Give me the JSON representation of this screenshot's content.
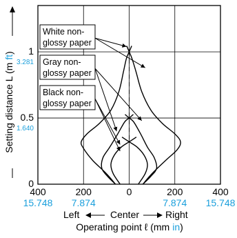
{
  "chart_data": {
    "type": "line",
    "ylabel": "Setting distance L (m ft)",
    "ylabel_main": "Setting distance L (m",
    "ylabel_unit_alt": "ft",
    "ylabel_close": ")",
    "xlabel_direction": {
      "left": "Left",
      "center": "Center",
      "right": "Right"
    },
    "xlabel": "Operating point ℓ (mm in)",
    "xlabel_main": "Operating point ℓ (mm",
    "xlabel_unit_alt": "in",
    "xlabel_close": ")",
    "xlim": [
      -400,
      400
    ],
    "ylim": [
      0,
      1.35
    ],
    "x_ticks": [
      {
        "value": -400,
        "mm": "400",
        "in": "15.748"
      },
      {
        "value": -200,
        "mm": "200",
        "in": "7.874"
      },
      {
        "value": 0,
        "mm": "0",
        "in": ""
      },
      {
        "value": 200,
        "mm": "200",
        "in": "7.874"
      },
      {
        "value": 400,
        "mm": "400",
        "in": "15.748"
      }
    ],
    "y_ticks": [
      {
        "value": 0,
        "m": "0",
        "ft": ""
      },
      {
        "value": 0.5,
        "m": "0.5",
        "ft": "1.640"
      },
      {
        "value": 1,
        "m": "1",
        "ft": "3.281"
      }
    ],
    "grid": true,
    "series": [
      {
        "name": "White non-glossy paper",
        "left": [
          [
            -60,
            0
          ],
          [
            -100,
            0.08
          ],
          [
            -160,
            0.18
          ],
          [
            -200,
            0.27
          ],
          [
            -210,
            0.32
          ],
          [
            -185,
            0.38
          ],
          [
            -130,
            0.46
          ],
          [
            -80,
            0.56
          ],
          [
            -45,
            0.7
          ],
          [
            -25,
            0.85
          ],
          [
            -12,
            0.95
          ],
          [
            0,
            1.0
          ]
        ],
        "right": [
          [
            60,
            0
          ],
          [
            100,
            0.08
          ],
          [
            160,
            0.18
          ],
          [
            210,
            0.26
          ],
          [
            225,
            0.32
          ],
          [
            200,
            0.38
          ],
          [
            145,
            0.46
          ],
          [
            95,
            0.56
          ],
          [
            55,
            0.7
          ],
          [
            30,
            0.85
          ],
          [
            12,
            0.95
          ],
          [
            0,
            1.0
          ]
        ]
      },
      {
        "name": "Gray non-glossy paper",
        "left": [
          [
            -60,
            0
          ],
          [
            -95,
            0.06
          ],
          [
            -120,
            0.12
          ],
          [
            -115,
            0.2
          ],
          [
            -85,
            0.28
          ],
          [
            -50,
            0.38
          ],
          [
            -20,
            0.47
          ],
          [
            0,
            0.5
          ]
        ],
        "right": [
          [
            60,
            0
          ],
          [
            95,
            0.06
          ],
          [
            120,
            0.12
          ],
          [
            110,
            0.2
          ],
          [
            80,
            0.28
          ],
          [
            50,
            0.38
          ],
          [
            20,
            0.47
          ],
          [
            0,
            0.5
          ]
        ]
      },
      {
        "name": "Black non-glossy paper",
        "left": [
          [
            -40,
            0
          ],
          [
            -70,
            0.08
          ],
          [
            -80,
            0.15
          ],
          [
            -65,
            0.22
          ],
          [
            -35,
            0.28
          ],
          [
            0,
            0.32
          ]
        ],
        "right": [
          [
            40,
            0
          ],
          [
            70,
            0.08
          ],
          [
            80,
            0.15
          ],
          [
            65,
            0.22
          ],
          [
            35,
            0.28
          ],
          [
            0,
            0.32
          ]
        ]
      }
    ],
    "annotations": [
      {
        "lines": [
          "White non-",
          "glossy paper"
        ]
      },
      {
        "lines": [
          "Gray non-",
          "glossy paper"
        ]
      },
      {
        "lines": [
          "Black non-",
          "glossy paper"
        ]
      }
    ]
  }
}
